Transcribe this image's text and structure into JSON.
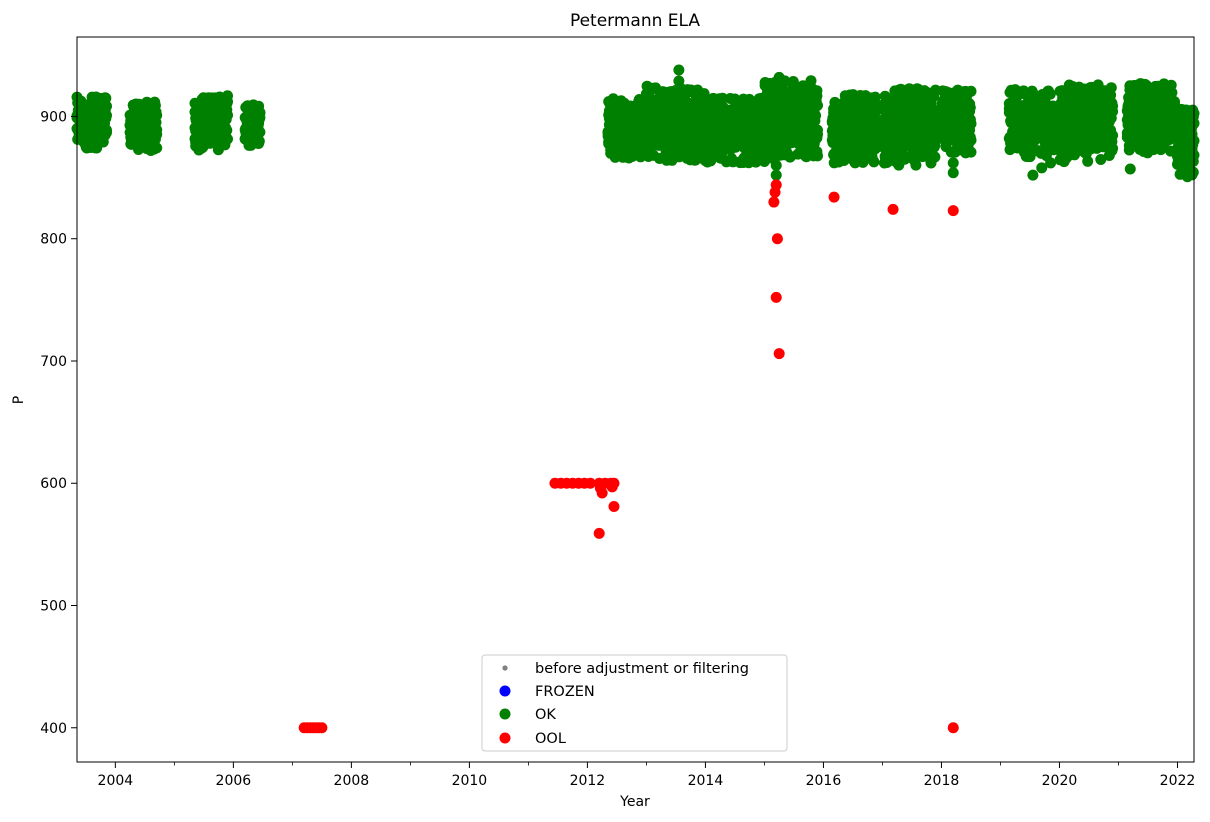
{
  "chart_data": {
    "type": "scatter",
    "title": "Petermann ELA",
    "xlabel": "Year",
    "ylabel": "P",
    "xlim": [
      2003.35,
      2022.28
    ],
    "ylim": [
      372,
      965
    ],
    "x_ticks": [
      2004,
      2006,
      2008,
      2010,
      2012,
      2014,
      2016,
      2018,
      2020,
      2022
    ],
    "x_tick_labels": [
      "2004",
      "2006",
      "2008",
      "2010",
      "2012",
      "2014",
      "2016",
      "2018",
      "2020",
      "2022"
    ],
    "y_ticks": [
      400,
      500,
      600,
      700,
      800,
      900
    ],
    "y_tick_labels": [
      "400",
      "500",
      "600",
      "700",
      "800",
      "900"
    ],
    "legend_position": "lower center",
    "series": [
      {
        "name": "before adjustment or filtering",
        "color": "#808080",
        "marker": "small-dot",
        "points": []
      },
      {
        "name": "FROZEN",
        "color": "#0000ff",
        "marker": "dot",
        "points": []
      },
      {
        "name": "OK",
        "color": "#008000",
        "marker": "dot",
        "clusters": [
          {
            "x_start": 2003.35,
            "x_end": 2003.85,
            "y_min": 874,
            "y_max": 916
          },
          {
            "x_start": 2004.25,
            "x_end": 2004.7,
            "y_min": 872,
            "y_max": 912
          },
          {
            "x_start": 2005.35,
            "x_end": 2005.9,
            "y_min": 872,
            "y_max": 917
          },
          {
            "x_start": 2006.2,
            "x_end": 2006.45,
            "y_min": 876,
            "y_max": 911
          },
          {
            "x_start": 2012.35,
            "x_end": 2013.0,
            "y_min": 866,
            "y_max": 916
          },
          {
            "x_start": 2013.0,
            "x_end": 2014.0,
            "y_min": 864,
            "y_max": 925
          },
          {
            "x_start": 2014.0,
            "x_end": 2015.0,
            "y_min": 862,
            "y_max": 915
          },
          {
            "x_start": 2015.0,
            "x_end": 2015.9,
            "y_min": 866,
            "y_max": 930
          },
          {
            "x_start": 2016.15,
            "x_end": 2016.9,
            "y_min": 862,
            "y_max": 918
          },
          {
            "x_start": 2017.0,
            "x_end": 2017.9,
            "y_min": 860,
            "y_max": 923
          },
          {
            "x_start": 2018.0,
            "x_end": 2018.5,
            "y_min": 870,
            "y_max": 922
          },
          {
            "x_start": 2019.15,
            "x_end": 2019.9,
            "y_min": 867,
            "y_max": 922
          },
          {
            "x_start": 2020.0,
            "x_end": 2020.9,
            "y_min": 863,
            "y_max": 926
          },
          {
            "x_start": 2021.15,
            "x_end": 2021.95,
            "y_min": 870,
            "y_max": 927
          },
          {
            "x_start": 2022.0,
            "x_end": 2022.28,
            "y_min": 850,
            "y_max": 908
          }
        ],
        "points": [
          {
            "x": 2013.55,
            "y": 938
          },
          {
            "x": 2013.55,
            "y": 929
          },
          {
            "x": 2015.25,
            "y": 932
          },
          {
            "x": 2015.2,
            "y": 852
          },
          {
            "x": 2015.2,
            "y": 860
          },
          {
            "x": 2017.55,
            "y": 870
          },
          {
            "x": 2018.2,
            "y": 854
          },
          {
            "x": 2018.2,
            "y": 862
          },
          {
            "x": 2019.55,
            "y": 852
          },
          {
            "x": 2019.7,
            "y": 858
          },
          {
            "x": 2019.85,
            "y": 862
          },
          {
            "x": 2021.2,
            "y": 857
          }
        ]
      },
      {
        "name": "OOL",
        "color": "#ff0000",
        "marker": "dot",
        "points": [
          {
            "x": 2007.2,
            "y": 400
          },
          {
            "x": 2007.25,
            "y": 400
          },
          {
            "x": 2007.3,
            "y": 400
          },
          {
            "x": 2007.35,
            "y": 400
          },
          {
            "x": 2007.4,
            "y": 400
          },
          {
            "x": 2007.45,
            "y": 400
          },
          {
            "x": 2007.5,
            "y": 400
          },
          {
            "x": 2011.45,
            "y": 600
          },
          {
            "x": 2011.55,
            "y": 600
          },
          {
            "x": 2011.65,
            "y": 600
          },
          {
            "x": 2011.75,
            "y": 600
          },
          {
            "x": 2011.85,
            "y": 600
          },
          {
            "x": 2011.95,
            "y": 600
          },
          {
            "x": 2012.05,
            "y": 600
          },
          {
            "x": 2012.2,
            "y": 600
          },
          {
            "x": 2012.3,
            "y": 600
          },
          {
            "x": 2012.4,
            "y": 600
          },
          {
            "x": 2012.45,
            "y": 600
          },
          {
            "x": 2012.22,
            "y": 596
          },
          {
            "x": 2012.25,
            "y": 592
          },
          {
            "x": 2012.42,
            "y": 597
          },
          {
            "x": 2012.2,
            "y": 559
          },
          {
            "x": 2012.45,
            "y": 581
          },
          {
            "x": 2015.2,
            "y": 844
          },
          {
            "x": 2015.18,
            "y": 838
          },
          {
            "x": 2015.16,
            "y": 830
          },
          {
            "x": 2015.22,
            "y": 800
          },
          {
            "x": 2015.2,
            "y": 752
          },
          {
            "x": 2015.25,
            "y": 706
          },
          {
            "x": 2016.18,
            "y": 834
          },
          {
            "x": 2017.18,
            "y": 824
          },
          {
            "x": 2018.2,
            "y": 823
          },
          {
            "x": 2018.2,
            "y": 400
          }
        ]
      }
    ]
  }
}
